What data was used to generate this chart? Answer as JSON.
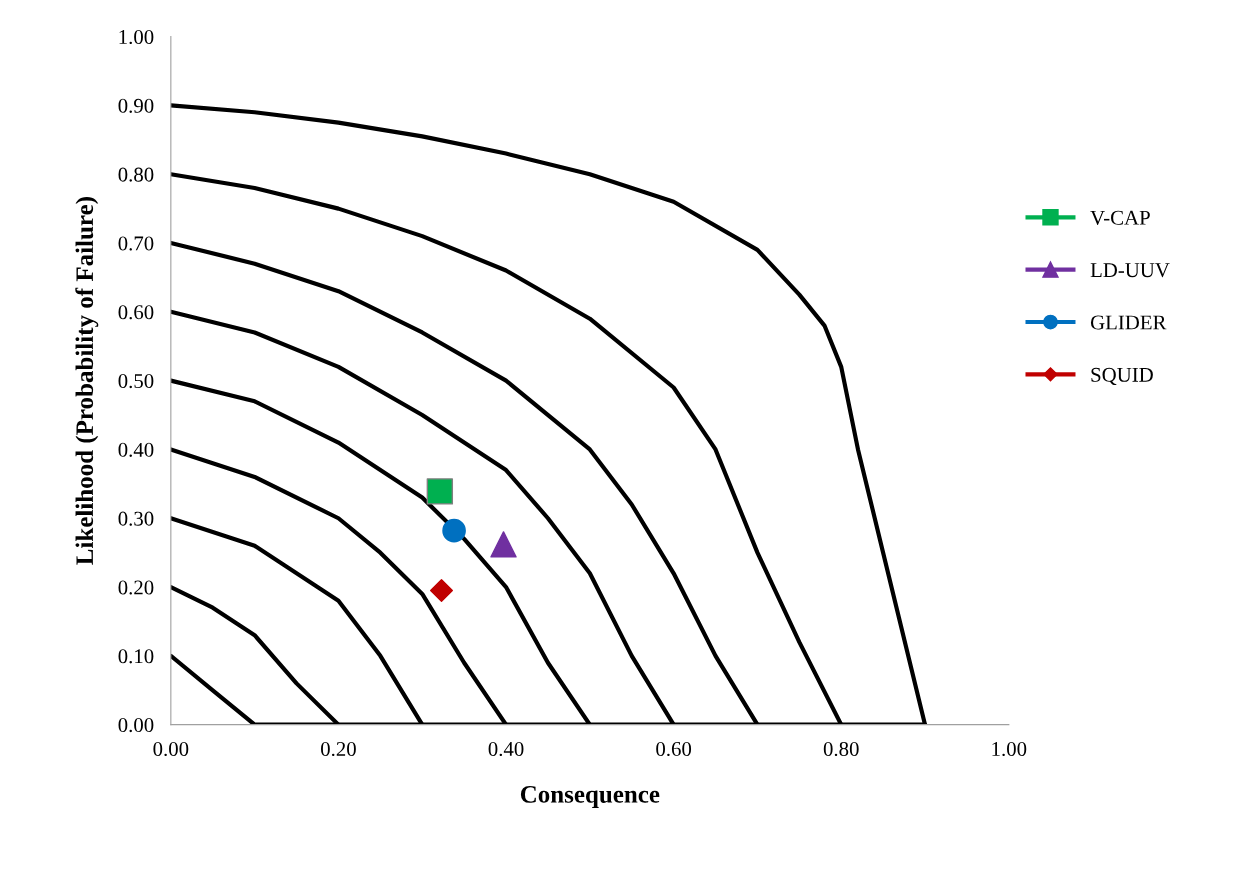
{
  "chart_data": {
    "type": "scatter",
    "xlabel": "Consequence",
    "ylabel": "Likelihood (Probability of Failure)",
    "xlim": [
      0,
      1
    ],
    "ylim": [
      0,
      1
    ],
    "xticks": [
      {
        "value": 0,
        "label": "0.00"
      },
      {
        "value": 0.2,
        "label": "0.20"
      },
      {
        "value": 0.4,
        "label": "0.40"
      },
      {
        "value": 0.6,
        "label": "0.60"
      },
      {
        "value": 0.8,
        "label": "0.80"
      },
      {
        "value": 1,
        "label": "1.00"
      }
    ],
    "yticks": [
      {
        "value": 0,
        "label": "0.00"
      },
      {
        "value": 0.1,
        "label": "0.10"
      },
      {
        "value": 0.2,
        "label": "0.20"
      },
      {
        "value": 0.3,
        "label": "0.30"
      },
      {
        "value": 0.4,
        "label": "0.40"
      },
      {
        "value": 0.5,
        "label": "0.50"
      },
      {
        "value": 0.6,
        "label": "0.60"
      },
      {
        "value": 0.7,
        "label": "0.70"
      },
      {
        "value": 0.8,
        "label": "0.80"
      },
      {
        "value": 0.9,
        "label": "0.90"
      },
      {
        "value": 1,
        "label": "1.00"
      }
    ],
    "grid": false,
    "legend": "right",
    "series": [
      {
        "type": "line",
        "color": "#000000",
        "marker": "none",
        "x": [
          0,
          0.05,
          0.1,
          0.9
        ],
        "values": [
          0.1,
          0.05,
          0,
          0
        ]
      },
      {
        "type": "line",
        "color": "#000000",
        "marker": "none",
        "x": [
          0,
          0.05,
          0.1,
          0.15,
          0.2
        ],
        "values": [
          0.2,
          0.17,
          0.13,
          0.06,
          0
        ]
      },
      {
        "type": "line",
        "color": "#000000",
        "marker": "none",
        "x": [
          0,
          0.1,
          0.2,
          0.25,
          0.3
        ],
        "values": [
          0.3,
          0.26,
          0.18,
          0.1,
          0
        ]
      },
      {
        "type": "line",
        "color": "#000000",
        "marker": "none",
        "x": [
          0,
          0.1,
          0.2,
          0.25,
          0.3,
          0.35,
          0.4
        ],
        "values": [
          0.4,
          0.36,
          0.3,
          0.25,
          0.19,
          0.09,
          0
        ]
      },
      {
        "type": "line",
        "color": "#000000",
        "marker": "none",
        "x": [
          0,
          0.1,
          0.2,
          0.3,
          0.35,
          0.4,
          0.45,
          0.5
        ],
        "values": [
          0.5,
          0.47,
          0.41,
          0.33,
          0.27,
          0.2,
          0.09,
          0
        ]
      },
      {
        "type": "line",
        "color": "#000000",
        "marker": "none",
        "x": [
          0,
          0.1,
          0.2,
          0.3,
          0.4,
          0.45,
          0.5,
          0.55,
          0.6
        ],
        "values": [
          0.6,
          0.57,
          0.52,
          0.45,
          0.37,
          0.3,
          0.22,
          0.1,
          0
        ]
      },
      {
        "type": "line",
        "color": "#000000",
        "marker": "none",
        "x": [
          0,
          0.1,
          0.2,
          0.3,
          0.4,
          0.5,
          0.55,
          0.6,
          0.65,
          0.7
        ],
        "values": [
          0.7,
          0.67,
          0.63,
          0.57,
          0.5,
          0.4,
          0.32,
          0.22,
          0.1,
          0
        ]
      },
      {
        "type": "line",
        "color": "#000000",
        "marker": "none",
        "x": [
          0,
          0.1,
          0.2,
          0.3,
          0.4,
          0.5,
          0.6,
          0.65,
          0.7,
          0.75,
          0.8
        ],
        "values": [
          0.8,
          0.78,
          0.75,
          0.71,
          0.66,
          0.59,
          0.49,
          0.4,
          0.25,
          0.12,
          0
        ]
      },
      {
        "type": "line",
        "color": "#000000",
        "marker": "none",
        "x": [
          0,
          0.1,
          0.2,
          0.3,
          0.4,
          0.5,
          0.6,
          0.7,
          0.75,
          0.78,
          0.8,
          0.82,
          0.85,
          0.9
        ],
        "values": [
          0.9,
          0.89,
          0.875,
          0.855,
          0.83,
          0.8,
          0.76,
          0.69,
          0.625,
          0.58,
          0.52,
          0.4,
          0.25,
          0
        ]
      },
      {
        "name": "V-CAP",
        "color": "#00b050",
        "marker": "square",
        "x": [
          0.321
        ],
        "values": [
          0.339
        ]
      },
      {
        "name": "LD-UUV",
        "color": "#7030a0",
        "marker": "triangle",
        "x": [
          0.397
        ],
        "values": [
          0.262
        ]
      },
      {
        "name": "GLIDER",
        "color": "#0070c0",
        "marker": "circle",
        "x": [
          0.338
        ],
        "values": [
          0.282
        ]
      },
      {
        "name": "SQUID",
        "color": "#c00000",
        "marker": "diamond",
        "x": [
          0.323
        ],
        "values": [
          0.195
        ]
      }
    ]
  }
}
